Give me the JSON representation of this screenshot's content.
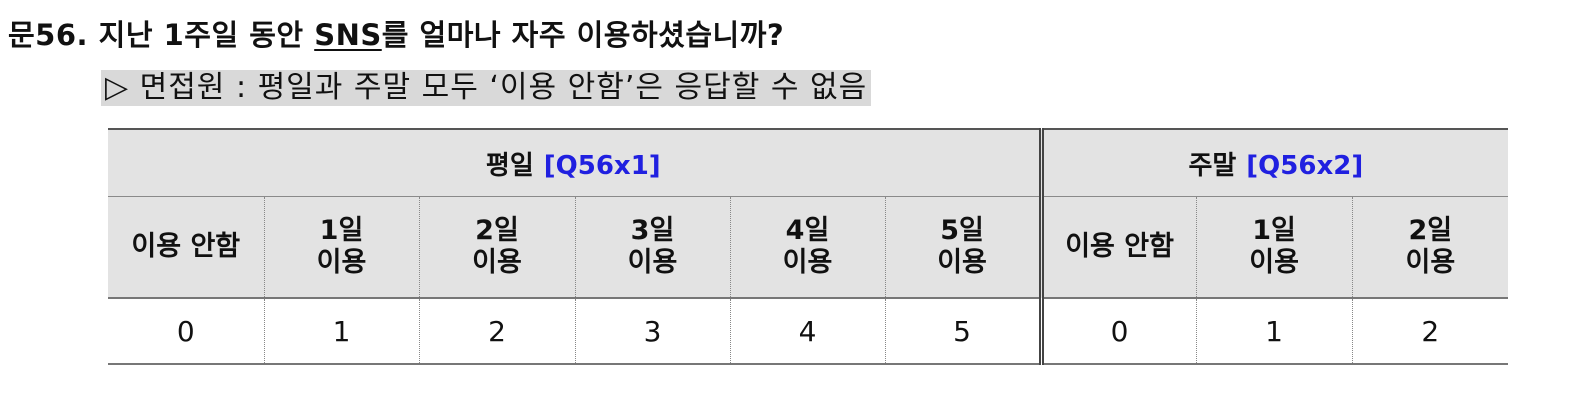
{
  "question": {
    "prefix": "문56. 지난 1주일 동안 ",
    "sns": "SNS",
    "suffix": "를 얼마나 자주 이용하셨습니까?"
  },
  "note": "▷ 면접원 : 평일과 주말 모두 ‘이용 안함’은 응답할 수 없음",
  "table": {
    "groups": {
      "weekday": {
        "label": "평일",
        "code": "[Q56x1]"
      },
      "weekend": {
        "label": "주말",
        "code": "[Q56x2]"
      }
    },
    "weekday_columns": [
      {
        "line1": "이용 안함",
        "line2": "",
        "value": "0"
      },
      {
        "line1": "1일",
        "line2": "이용",
        "value": "1"
      },
      {
        "line1": "2일",
        "line2": "이용",
        "value": "2"
      },
      {
        "line1": "3일",
        "line2": "이용",
        "value": "3"
      },
      {
        "line1": "4일",
        "line2": "이용",
        "value": "4"
      },
      {
        "line1": "5일",
        "line2": "이용",
        "value": "5"
      }
    ],
    "weekend_columns": [
      {
        "line1": "이용 안함",
        "line2": "",
        "value": "0"
      },
      {
        "line1": "1일",
        "line2": "이용",
        "value": "1"
      },
      {
        "line1": "2일",
        "line2": "이용",
        "value": "2"
      }
    ]
  },
  "colors": {
    "header_background": "#e3e3e3",
    "note_background": "#d9d9d9",
    "code_text": "#2020e0"
  }
}
